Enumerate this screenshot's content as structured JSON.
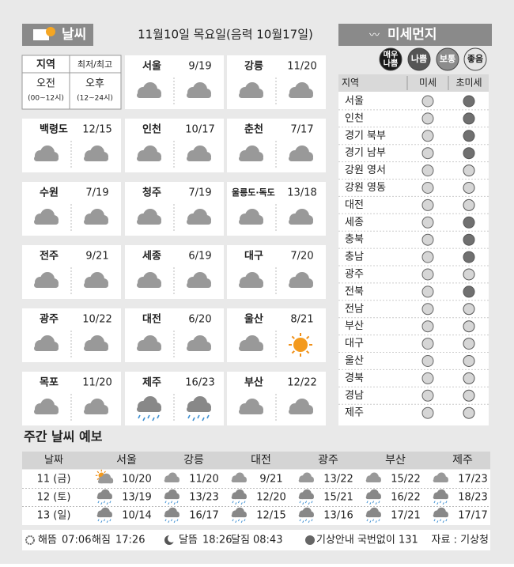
{
  "header": {
    "title": "날씨",
    "date": "11월10일 목요일(음력 10월17일)"
  },
  "legend_cell": {
    "region": "지역",
    "temp": "최저/최고",
    "am": "오전",
    "am_hours": "(00~12시)",
    "pm": "오후",
    "pm_hours": "(12~24시)"
  },
  "cities": [
    {
      "name": "서울",
      "temp": "9/19",
      "am": "cloud",
      "pm": "cloud"
    },
    {
      "name": "강릉",
      "temp": "11/20",
      "am": "cloud",
      "pm": "cloud"
    },
    {
      "name": "백령도",
      "temp": "12/15",
      "am": "cloud",
      "pm": "cloud"
    },
    {
      "name": "인천",
      "temp": "10/17",
      "am": "cloud",
      "pm": "cloud"
    },
    {
      "name": "춘천",
      "temp": "7/17",
      "am": "cloud",
      "pm": "cloud"
    },
    {
      "name": "수원",
      "temp": "7/19",
      "am": "cloud",
      "pm": "cloud"
    },
    {
      "name": "청주",
      "temp": "7/19",
      "am": "cloud",
      "pm": "cloud"
    },
    {
      "name": "울릉도·독도",
      "temp": "13/18",
      "am": "cloud",
      "pm": "cloud"
    },
    {
      "name": "전주",
      "temp": "9/21",
      "am": "cloud",
      "pm": "cloud"
    },
    {
      "name": "세종",
      "temp": "6/19",
      "am": "cloud",
      "pm": "cloud"
    },
    {
      "name": "대구",
      "temp": "7/20",
      "am": "cloud",
      "pm": "cloud"
    },
    {
      "name": "광주",
      "temp": "10/22",
      "am": "cloud",
      "pm": "cloud"
    },
    {
      "name": "대전",
      "temp": "6/20",
      "am": "cloud",
      "pm": "cloud"
    },
    {
      "name": "울산",
      "temp": "8/21",
      "am": "cloud",
      "pm": "sun"
    },
    {
      "name": "목포",
      "temp": "11/20",
      "am": "cloud",
      "pm": "cloud"
    },
    {
      "name": "제주",
      "temp": "16/23",
      "am": "rain",
      "pm": "rain"
    },
    {
      "name": "부산",
      "temp": "12/22",
      "am": "cloud",
      "pm": "cloud"
    }
  ],
  "dust": {
    "title": "미세먼지",
    "levels": [
      {
        "lines": [
          "매우",
          "나쁨"
        ],
        "color": "#1a1a1a"
      },
      {
        "lines": [
          "나쁨"
        ],
        "color": "#555555"
      },
      {
        "lines": [
          "보통"
        ],
        "color": "#8c8c8c"
      },
      {
        "lines": [
          "좋음"
        ],
        "color": "#e6e6e6"
      }
    ],
    "header": [
      "지역",
      "미세",
      "초미세"
    ],
    "rows": [
      {
        "region": "서울",
        "pm10": "#d6d6d6",
        "pm25": "#707070"
      },
      {
        "region": "인천",
        "pm10": "#d6d6d6",
        "pm25": "#707070"
      },
      {
        "region": "경기 북부",
        "pm10": "#d6d6d6",
        "pm25": "#707070"
      },
      {
        "region": "경기 남부",
        "pm10": "#d6d6d6",
        "pm25": "#707070"
      },
      {
        "region": "강원 영서",
        "pm10": "#d6d6d6",
        "pm25": "#d6d6d6"
      },
      {
        "region": "강원 영동",
        "pm10": "#d6d6d6",
        "pm25": "#d6d6d6"
      },
      {
        "region": "대전",
        "pm10": "#d6d6d6",
        "pm25": "#d6d6d6"
      },
      {
        "region": "세종",
        "pm10": "#d6d6d6",
        "pm25": "#707070"
      },
      {
        "region": "충북",
        "pm10": "#d6d6d6",
        "pm25": "#707070"
      },
      {
        "region": "충남",
        "pm10": "#d6d6d6",
        "pm25": "#707070"
      },
      {
        "region": "광주",
        "pm10": "#d6d6d6",
        "pm25": "#d6d6d6"
      },
      {
        "region": "전북",
        "pm10": "#d6d6d6",
        "pm25": "#707070"
      },
      {
        "region": "전남",
        "pm10": "#d6d6d6",
        "pm25": "#d6d6d6"
      },
      {
        "region": "부산",
        "pm10": "#d6d6d6",
        "pm25": "#d6d6d6"
      },
      {
        "region": "대구",
        "pm10": "#d6d6d6",
        "pm25": "#d6d6d6"
      },
      {
        "region": "울산",
        "pm10": "#d6d6d6",
        "pm25": "#d6d6d6"
      },
      {
        "region": "경북",
        "pm10": "#d6d6d6",
        "pm25": "#d6d6d6"
      },
      {
        "region": "경남",
        "pm10": "#d6d6d6",
        "pm25": "#d6d6d6"
      },
      {
        "region": "제주",
        "pm10": "#d6d6d6",
        "pm25": "#d6d6d6"
      }
    ]
  },
  "weekly": {
    "title": "주간 날씨 예보",
    "date_header": "날짜",
    "cities": [
      "서울",
      "강릉",
      "대전",
      "광주",
      "부산",
      "제주"
    ],
    "rows": [
      {
        "date": "11 (금)",
        "cells": [
          {
            "icon": "suncloud",
            "temp": "10/20"
          },
          {
            "icon": "cloud",
            "temp": "11/20"
          },
          {
            "icon": "cloud",
            "temp": "9/21"
          },
          {
            "icon": "cloud",
            "temp": "13/22"
          },
          {
            "icon": "cloud",
            "temp": "15/22"
          },
          {
            "icon": "cloud",
            "temp": "17/23"
          }
        ]
      },
      {
        "date": "12 (토)",
        "cells": [
          {
            "icon": "rain",
            "temp": "13/19"
          },
          {
            "icon": "rain",
            "temp": "13/23"
          },
          {
            "icon": "rain",
            "temp": "12/20"
          },
          {
            "icon": "rain",
            "temp": "15/21"
          },
          {
            "icon": "rain",
            "temp": "16/22"
          },
          {
            "icon": "rain",
            "temp": "18/23"
          }
        ]
      },
      {
        "date": "13 (일)",
        "cells": [
          {
            "icon": "rain",
            "temp": "10/14"
          },
          {
            "icon": "rain",
            "temp": "16/17"
          },
          {
            "icon": "rain",
            "temp": "12/15"
          },
          {
            "icon": "rain",
            "temp": "13/16"
          },
          {
            "icon": "rain",
            "temp": "17/21"
          },
          {
            "icon": "rain",
            "temp": "17/17"
          }
        ]
      }
    ]
  },
  "footer": {
    "sunrise_label": "해뜸",
    "sunrise": "07:06",
    "sunset_label": "해짐",
    "sunset": "17:26",
    "moonrise_label": "달뜸",
    "moonrise": "18:26",
    "moonset_label": "달짐",
    "moonset": "08:43",
    "phone": "기상안내 국번없이 131",
    "source": "자료 : 기상청"
  }
}
